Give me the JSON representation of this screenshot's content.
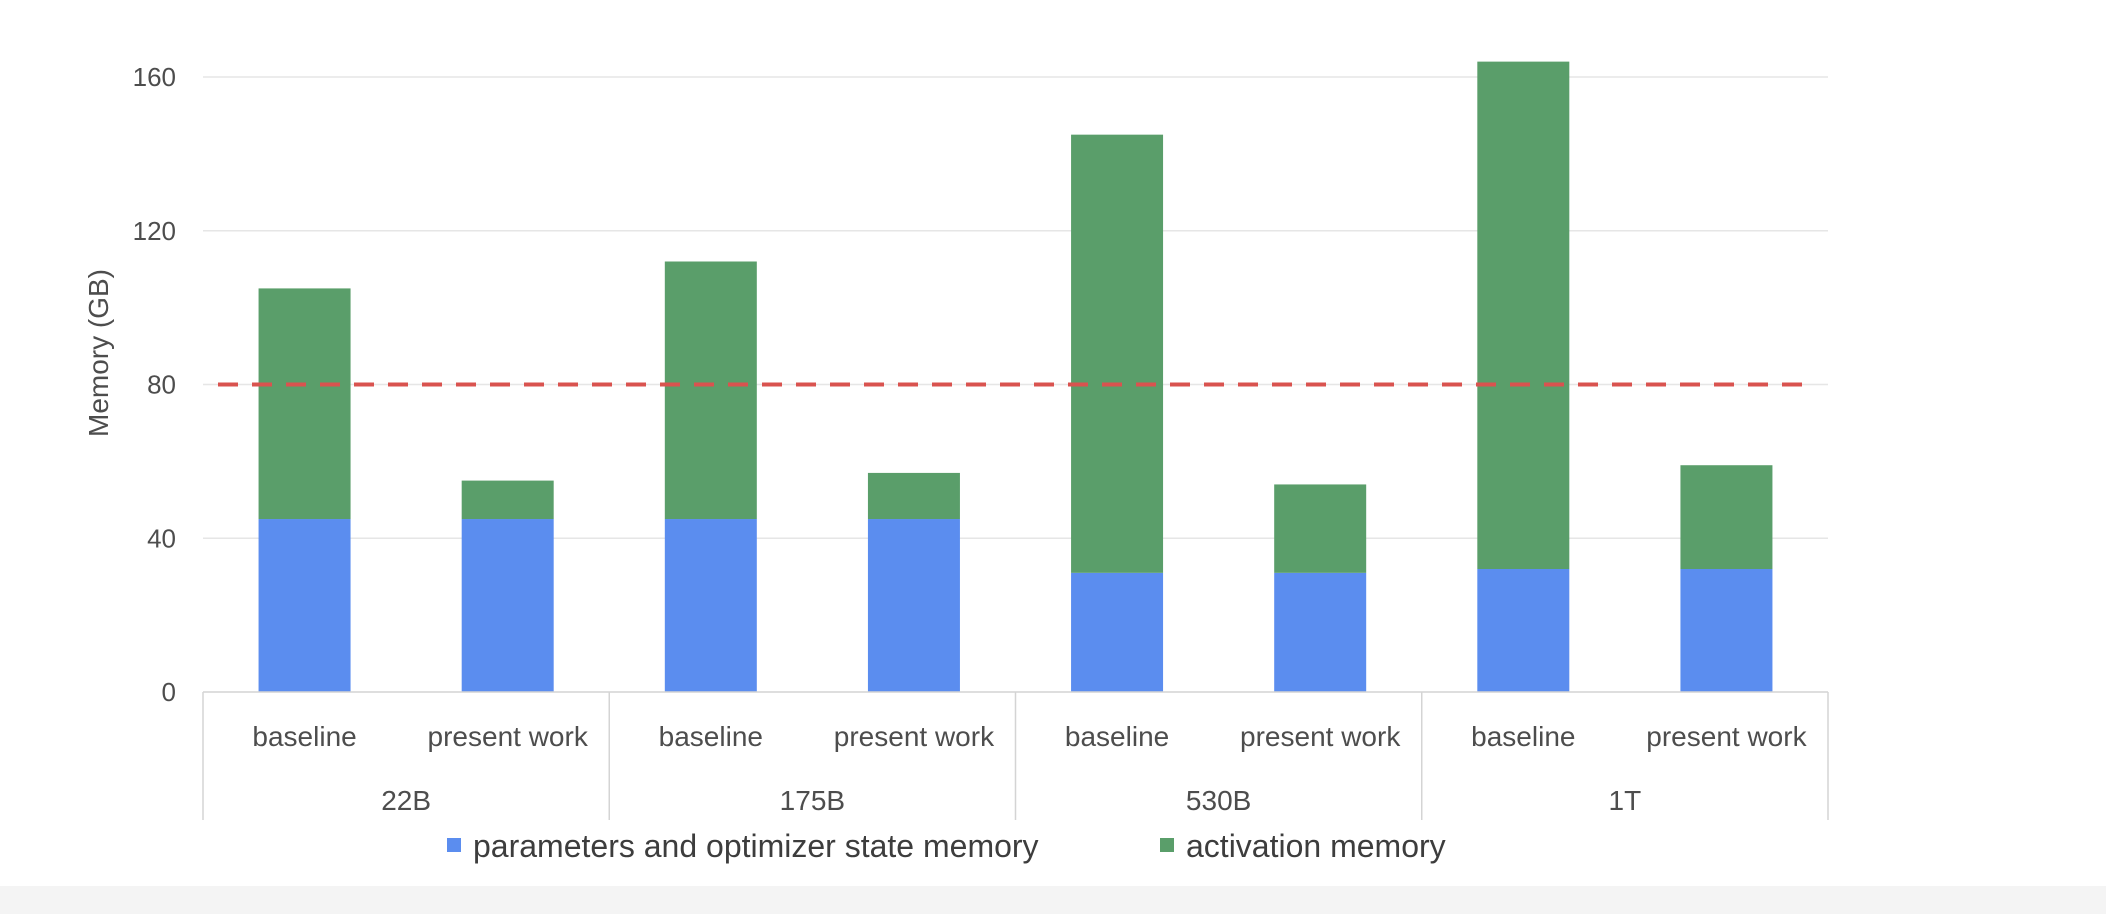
{
  "chart_data": {
    "type": "bar",
    "stacked": true,
    "title": "",
    "xlabel": "",
    "ylabel": "Memory (GB)",
    "ylim": [
      0,
      160
    ],
    "yticks": [
      0,
      40,
      80,
      120,
      160
    ],
    "grid": true,
    "legend": "bottom",
    "groups": [
      "22B",
      "175B",
      "530B",
      "1T"
    ],
    "categories": [
      "baseline",
      "present work",
      "baseline",
      "present work",
      "baseline",
      "present work",
      "baseline",
      "present work"
    ],
    "category_group": [
      "22B",
      "22B",
      "175B",
      "175B",
      "530B",
      "530B",
      "1T",
      "1T"
    ],
    "series": [
      {
        "name": "parameters and optimizer state memory",
        "color": "#5b8def",
        "values": [
          45,
          45,
          45,
          45,
          31,
          31,
          32,
          32
        ]
      },
      {
        "name": "activation memory",
        "color": "#5a9e6a",
        "values": [
          60,
          10,
          67,
          12,
          114,
          23,
          132,
          27
        ]
      }
    ],
    "reference_line": {
      "value": 80,
      "color": "#d9534f",
      "style": "dashed"
    }
  }
}
